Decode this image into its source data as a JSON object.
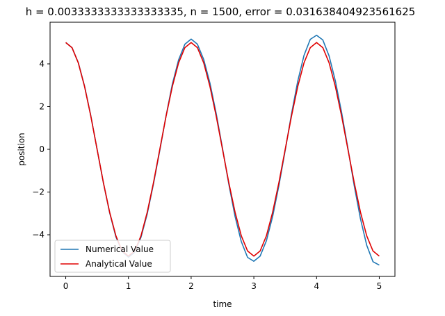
{
  "chart_data": {
    "type": "line",
    "title": "h = 0.0033333333333333335, n = 1500, error = 0.031638404923561625",
    "xlabel": "time",
    "ylabel": "position",
    "xlim": [
      -0.25,
      5.25
    ],
    "ylim": [
      -5.95,
      5.95
    ],
    "x_ticks": [
      0,
      1,
      2,
      3,
      4,
      5
    ],
    "x_tick_labels": [
      "0",
      "1",
      "2",
      "3",
      "4",
      "5"
    ],
    "y_ticks": [
      -4,
      -2,
      0,
      2,
      4
    ],
    "y_tick_labels": [
      "−4",
      "−2",
      "0",
      "2",
      "4"
    ],
    "grid": false,
    "legend_position": "lower-left",
    "x": [
      0,
      0.1,
      0.2,
      0.3,
      0.4,
      0.5,
      0.6,
      0.7,
      0.8,
      0.9,
      1.0,
      1.1,
      1.2,
      1.3,
      1.4,
      1.5,
      1.6,
      1.7,
      1.8,
      1.9,
      2.0,
      2.1,
      2.2,
      2.3,
      2.4,
      2.5,
      2.6,
      2.7,
      2.8,
      2.9,
      3.0,
      3.1,
      3.2,
      3.3,
      3.4,
      3.5,
      3.6,
      3.7,
      3.8,
      3.9,
      4.0,
      4.1,
      4.2,
      4.3,
      4.4,
      4.5,
      4.6,
      4.7,
      4.8,
      4.9,
      5.0
    ],
    "series": [
      {
        "name": "Numerical Value",
        "color": "#1f77b4",
        "values": [
          5.0,
          4.76,
          4.06,
          2.96,
          1.57,
          0.0,
          -1.56,
          -2.97,
          -4.1,
          -4.79,
          -5.05,
          -4.82,
          -4.12,
          -3.02,
          -1.61,
          -0.05,
          1.57,
          3.05,
          4.19,
          4.92,
          5.16,
          4.92,
          4.21,
          3.1,
          1.67,
          0.05,
          -1.62,
          -3.14,
          -4.32,
          -5.06,
          -5.24,
          -5.0,
          -4.28,
          -3.14,
          -1.69,
          -0.05,
          1.65,
          3.19,
          4.4,
          5.15,
          5.34,
          5.12,
          4.37,
          3.2,
          1.72,
          0.05,
          -1.69,
          -3.25,
          -4.49,
          -5.26,
          -5.42
        ]
      },
      {
        "name": "Analytical Value",
        "color": "#e00000",
        "values": [
          5.0,
          4.76,
          4.05,
          2.94,
          1.55,
          0.0,
          -1.55,
          -2.94,
          -4.05,
          -4.76,
          -5.0,
          -4.76,
          -4.05,
          -2.94,
          -1.55,
          0.0,
          1.55,
          2.94,
          4.05,
          4.76,
          5.0,
          4.76,
          4.05,
          2.94,
          1.55,
          0.0,
          -1.55,
          -2.94,
          -4.05,
          -4.76,
          -5.0,
          -4.76,
          -4.05,
          -2.94,
          -1.55,
          0.0,
          1.55,
          2.94,
          4.05,
          4.76,
          5.0,
          4.76,
          4.05,
          2.94,
          1.55,
          0.0,
          -1.55,
          -2.94,
          -4.05,
          -4.76,
          -5.0
        ]
      }
    ]
  }
}
